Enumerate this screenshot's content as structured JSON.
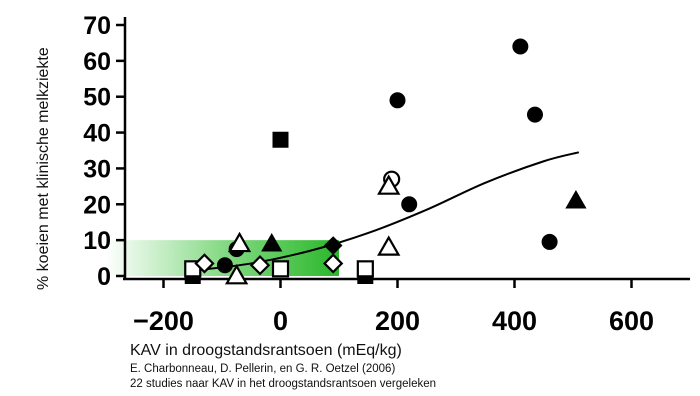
{
  "chart_data": {
    "type": "scatter",
    "title": "",
    "xlabel": "KAV in droogstandsrantsoen (mEq/kg)",
    "ylabel": "% koeien met klinische melkziekte",
    "xlim": [
      -300,
      700
    ],
    "ylim": [
      0,
      70
    ],
    "xticks": [
      -200,
      0,
      200,
      400,
      600
    ],
    "yticks": [
      0,
      10,
      20,
      30,
      40,
      50,
      60,
      70
    ],
    "xtick_labels": [
      "−200",
      "0",
      "200",
      "400",
      "600"
    ],
    "ytick_labels": [
      "0",
      "10",
      "20",
      "30",
      "40",
      "50",
      "60",
      "70"
    ],
    "highlight_region": {
      "x": [
        -300,
        100
      ],
      "y": [
        0,
        10
      ],
      "color": "#22bb22",
      "fade": "left"
    },
    "trend": {
      "type": "curve",
      "points": [
        [
          -150,
          1.5
        ],
        [
          -50,
          3.5
        ],
        [
          50,
          7
        ],
        [
          150,
          12
        ],
        [
          250,
          18.5
        ],
        [
          350,
          26
        ],
        [
          450,
          32
        ],
        [
          510,
          34.5
        ]
      ]
    },
    "series": [
      {
        "marker": "filled-circle",
        "points": [
          [
            -95,
            3
          ],
          [
            -75,
            7.5
          ],
          [
            200,
            49
          ],
          [
            220,
            20
          ],
          [
            410,
            64
          ],
          [
            435,
            45
          ],
          [
            460,
            9.5
          ]
        ]
      },
      {
        "marker": "open-circle",
        "points": [
          [
            190,
            27
          ]
        ]
      },
      {
        "marker": "filled-square",
        "points": [
          [
            0,
            38
          ],
          [
            -150,
            0
          ],
          [
            145,
            0
          ]
        ]
      },
      {
        "marker": "open-square",
        "points": [
          [
            -150,
            2
          ],
          [
            0,
            2
          ],
          [
            145,
            2
          ]
        ]
      },
      {
        "marker": "filled-triangle",
        "points": [
          [
            -15,
            9
          ],
          [
            505,
            21
          ]
        ]
      },
      {
        "marker": "open-triangle",
        "points": [
          [
            -70,
            9
          ],
          [
            -75,
            0
          ],
          [
            185,
            25
          ],
          [
            185,
            8
          ]
        ]
      },
      {
        "marker": "filled-diamond",
        "points": [
          [
            90,
            8.5
          ]
        ]
      },
      {
        "marker": "open-diamond",
        "points": [
          [
            -130,
            3.5
          ],
          [
            -35,
            3
          ],
          [
            90,
            3.5
          ]
        ]
      }
    ]
  },
  "credits": {
    "line1": "E. Charbonneau, D. Pellerin, en G. R. Oetzel (2006)",
    "line2": "22 studies naar KAV in het droogstandsrantsoen vergeleken"
  }
}
